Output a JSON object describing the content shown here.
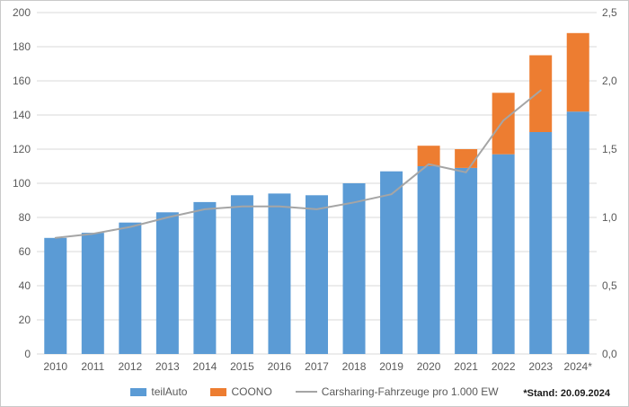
{
  "chart_data": {
    "type": "bar",
    "subtype": "stacked-bars-with-secondary-axis-line",
    "title": "",
    "categories": [
      "2010",
      "2011",
      "2012",
      "2013",
      "2014",
      "2015",
      "2016",
      "2017",
      "2018",
      "2019",
      "2020",
      "2021",
      "2022",
      "2023",
      "2024*"
    ],
    "series": [
      {
        "name": "teilAuto",
        "type": "bar",
        "stacked": true,
        "axis": "left",
        "color": "#5b9bd5",
        "values": [
          68,
          71,
          77,
          83,
          89,
          93,
          94,
          93,
          100,
          107,
          110,
          109,
          117,
          130,
          142
        ]
      },
      {
        "name": "COONO",
        "type": "bar",
        "stacked": true,
        "axis": "left",
        "color": "#ed7d31",
        "values": [
          0,
          0,
          0,
          0,
          0,
          0,
          0,
          0,
          0,
          0,
          12,
          11,
          36,
          45,
          46
        ]
      },
      {
        "name": "Carsharing-Fahrzeuge pro 1.000 EW",
        "type": "line",
        "axis": "right",
        "color": "#a5a5a5",
        "values": [
          0.85,
          0.88,
          0.93,
          1.0,
          1.06,
          1.08,
          1.08,
          1.06,
          1.11,
          1.17,
          1.39,
          1.33,
          1.71,
          1.93,
          null
        ]
      }
    ],
    "stacked_totals": [
      68,
      71,
      77,
      83,
      89,
      93,
      94,
      93,
      100,
      107,
      122,
      120,
      153,
      175,
      188
    ],
    "left_axis": {
      "min": 0,
      "max": 200,
      "step": 20,
      "tick_labels": [
        "0",
        "20",
        "40",
        "60",
        "80",
        "100",
        "120",
        "140",
        "160",
        "180",
        "200"
      ]
    },
    "right_axis": {
      "min": 0,
      "max": 2.5,
      "step": 0.5,
      "tick_labels": [
        "0,0",
        "0,5",
        "1,0",
        "1,5",
        "2,0",
        "2,5"
      ]
    },
    "grid": true,
    "legend_position": "bottom",
    "xlabel": "",
    "ylabel": ""
  },
  "footnote": "*Stand: 20.09.2024",
  "colors": {
    "bar_blue": "#5b9bd5",
    "bar_orange": "#ed7d31",
    "line_gray": "#a5a5a5",
    "gridline": "#d9d9d9",
    "axis_text": "#595959",
    "background": "#ffffff",
    "border": "#c9c9c9"
  }
}
